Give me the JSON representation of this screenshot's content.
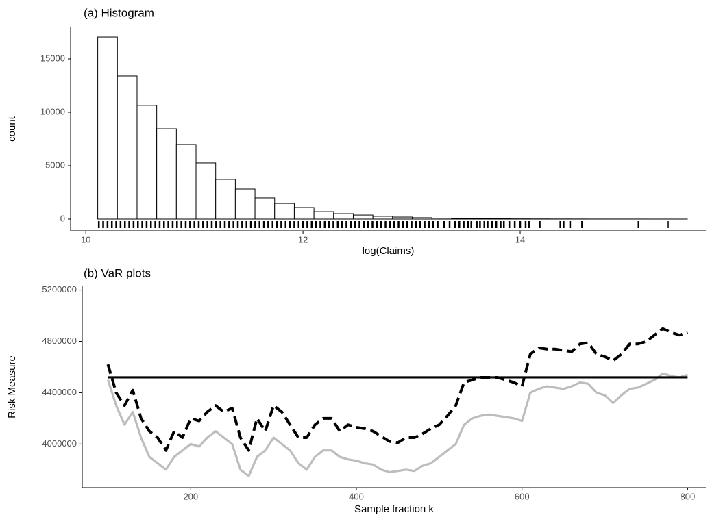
{
  "chart_data": [
    {
      "type": "histogram",
      "title": "(a) Histogram",
      "xlabel": "log(Claims)",
      "ylabel": "count",
      "bins": [
        10.11,
        10.291,
        10.472,
        10.653,
        10.834,
        11.015,
        11.196,
        11.377,
        11.558,
        11.739,
        11.92,
        12.101,
        12.282,
        12.463,
        12.644,
        12.825,
        13.006,
        13.187,
        13.368,
        13.549,
        13.73,
        13.911,
        14.092,
        14.273,
        14.454,
        14.635,
        14.816,
        14.997,
        15.178,
        15.359,
        15.54
      ],
      "counts": [
        17050,
        13400,
        10650,
        8460,
        6990,
        5260,
        3720,
        2820,
        1990,
        1470,
        1090,
        700,
        510,
        380,
        260,
        190,
        130,
        90,
        60,
        40,
        30,
        20,
        15,
        10,
        8,
        5,
        4,
        3,
        2,
        1
      ],
      "rug": [
        10.12,
        10.16,
        10.2,
        10.24,
        10.28,
        10.32,
        10.36,
        10.4,
        10.44,
        10.48,
        10.52,
        10.56,
        10.6,
        10.64,
        10.68,
        10.72,
        10.76,
        10.8,
        10.84,
        10.88,
        10.92,
        10.96,
        11,
        11.04,
        11.08,
        11.12,
        11.16,
        11.2,
        11.24,
        11.28,
        11.32,
        11.36,
        11.4,
        11.44,
        11.48,
        11.52,
        11.56,
        11.6,
        11.64,
        11.68,
        11.72,
        11.76,
        11.8,
        11.84,
        11.88,
        11.92,
        11.96,
        12,
        12.04,
        12.08,
        12.12,
        12.16,
        12.2,
        12.24,
        12.28,
        12.32,
        12.36,
        12.4,
        12.44,
        12.48,
        12.52,
        12.56,
        12.6,
        12.64,
        12.68,
        12.72,
        12.76,
        12.8,
        12.84,
        12.88,
        12.92,
        12.96,
        13,
        13.04,
        13.08,
        13.12,
        13.16,
        13.2,
        13.24,
        13.3,
        13.35,
        13.4,
        13.44,
        13.48,
        13.52,
        13.55,
        13.6,
        13.63,
        13.67,
        13.7,
        13.74,
        13.78,
        13.82,
        13.85,
        13.9,
        13.95,
        14.0,
        14.05,
        14.08,
        14.18,
        14.37,
        14.4,
        14.46,
        14.57,
        15.09,
        15.36
      ],
      "color": "#ffffff",
      "edgecolor": "#000000",
      "xlim": [
        9.86,
        15.71
      ],
      "xticks": [
        10,
        12,
        14
      ],
      "ylim": [
        -1090,
        17950
      ],
      "yticks": [
        0,
        5000,
        10000,
        15000
      ]
    },
    {
      "type": "line",
      "title": "(b) VaR plots",
      "xlabel": "Sample fraction k",
      "ylabel": "Risk Measure",
      "x": [
        100,
        110,
        120,
        130,
        140,
        150,
        160,
        170,
        180,
        190,
        200,
        210,
        220,
        230,
        240,
        250,
        260,
        270,
        280,
        290,
        300,
        310,
        320,
        330,
        340,
        350,
        360,
        370,
        380,
        390,
        400,
        410,
        420,
        430,
        440,
        450,
        460,
        470,
        480,
        490,
        500,
        510,
        520,
        530,
        540,
        550,
        560,
        570,
        580,
        590,
        600,
        610,
        620,
        630,
        640,
        650,
        660,
        670,
        680,
        690,
        700,
        710,
        720,
        730,
        740,
        750,
        760,
        770,
        780,
        790,
        800
      ],
      "series": [
        {
          "color": "#bdbdbd",
          "dash": false,
          "values": [
            4500000,
            4300000,
            4150000,
            4250000,
            4050000,
            3900000,
            3850000,
            3800000,
            3900000,
            3950000,
            4000000,
            3980000,
            4050000,
            4100000,
            4050000,
            4000000,
            3800000,
            3750000,
            3900000,
            3950000,
            4050000,
            4000000,
            3950000,
            3850000,
            3800000,
            3900000,
            3950000,
            3950000,
            3900000,
            3880000,
            3870000,
            3850000,
            3840000,
            3800000,
            3780000,
            3790000,
            3800000,
            3790000,
            3830000,
            3850000,
            3900000,
            3950000,
            4000000,
            4150000,
            4200000,
            4220000,
            4230000,
            4220000,
            4210000,
            4200000,
            4180000,
            4400000,
            4430000,
            4450000,
            4440000,
            4430000,
            4450000,
            4480000,
            4470000,
            4400000,
            4380000,
            4320000,
            4380000,
            4430000,
            4440000,
            4470000,
            4500000,
            4550000,
            4530000,
            4520000,
            4540000
          ]
        },
        {
          "color": "#000000",
          "dash": true,
          "values": [
            4620000,
            4400000,
            4300000,
            4420000,
            4200000,
            4100000,
            4050000,
            3950000,
            4100000,
            4050000,
            4200000,
            4180000,
            4250000,
            4300000,
            4250000,
            4280000,
            4050000,
            3950000,
            4200000,
            4100000,
            4300000,
            4250000,
            4150000,
            4050000,
            4050000,
            4150000,
            4200000,
            4200000,
            4100000,
            4150000,
            4130000,
            4120000,
            4100000,
            4060000,
            4020000,
            4010000,
            4050000,
            4050000,
            4080000,
            4120000,
            4150000,
            4220000,
            4300000,
            4480000,
            4500000,
            4520000,
            4520000,
            4520000,
            4500000,
            4480000,
            4450000,
            4700000,
            4750000,
            4740000,
            4740000,
            4730000,
            4720000,
            4780000,
            4790000,
            4700000,
            4680000,
            4650000,
            4700000,
            4780000,
            4780000,
            4800000,
            4850000,
            4900000,
            4870000,
            4850000,
            4870000
          ]
        },
        {
          "color": "#000000",
          "dash": false,
          "x": [
            100,
            800
          ],
          "values": [
            4520000,
            4520000
          ]
        }
      ],
      "xlim": [
        69,
        822
      ],
      "xticks": [
        200,
        400,
        600,
        800
      ],
      "ylim": [
        3660000,
        5230000
      ],
      "yticks": [
        4000000,
        4400000,
        4800000,
        5200000
      ]
    }
  ]
}
